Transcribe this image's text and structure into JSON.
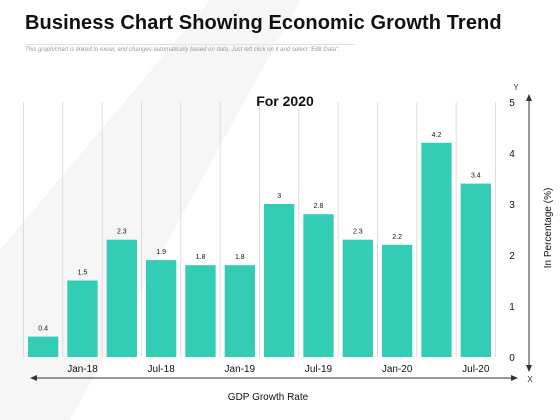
{
  "page": {
    "title": "Business Chart Showing Economic Growth Trend",
    "subtitle": "This graph/chart is linked to excel, and changes automatically based on data. Just left click on it and select \"Edit Data\"."
  },
  "colors": {
    "bar": "#33CCB4",
    "text": "#111111",
    "axis": "#333333",
    "grid": "#d6d6d6"
  },
  "chart_data": {
    "type": "bar",
    "title": "For 2020",
    "xlabel": "GDP Growth Rate",
    "ylabel": "In Percentage (%)",
    "x_axis_letter": "X",
    "y_axis_letter": "Y",
    "values": [
      0.4,
      1.5,
      2.3,
      1.9,
      1.8,
      1.8,
      3,
      2.8,
      2.3,
      2.2,
      4.2,
      3.4
    ],
    "value_labels": [
      "0.4",
      "1.5",
      "2.3",
      "1.9",
      "1.8",
      "1.8",
      "3",
      "2.8",
      "2.3",
      "2.2",
      "4.2",
      "3.4"
    ],
    "tick_labels": [
      "",
      "Jan-18",
      "",
      "Jul-18",
      "",
      "Jan-19",
      "",
      "Jul-19",
      "",
      "Jan-20",
      "",
      "Jul-20"
    ],
    "ylim": [
      0,
      5
    ],
    "yticks": [
      "0",
      "1",
      "2",
      "3",
      "4",
      "5"
    ],
    "grid": true,
    "grid_axis": "x"
  }
}
